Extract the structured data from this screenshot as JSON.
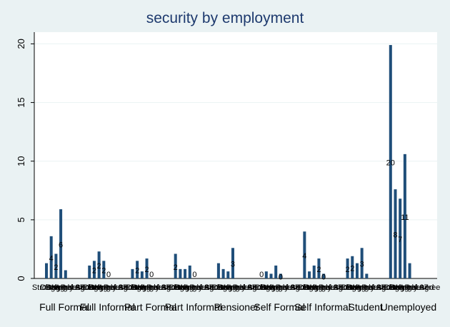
{
  "chart_data": {
    "type": "bar",
    "title": "security by employment",
    "xlabel": "",
    "ylabel": "",
    "ylim": [
      0,
      21
    ],
    "yticks": [
      0,
      5,
      10,
      15,
      20
    ],
    "grid": "horizontal",
    "legend": "none",
    "bar_color": "#1f4e79",
    "plot_background": "#ffffff",
    "frame_background": "#eaf2f3",
    "subcategory_labels": [
      "Strongly",
      "DK",
      "Disagree",
      "Neutral",
      "Agree",
      "Strongly Agree",
      "Refused",
      "97"
    ],
    "groups": [
      {
        "name": "Full Formal",
        "values": [
          1.3,
          3.6,
          2.1,
          5.9,
          0.7,
          0,
          0,
          0
        ],
        "labels": [
          "",
          "4",
          "2",
          "6",
          "",
          "",
          "",
          ""
        ]
      },
      {
        "name": "Full Informal",
        "values": [
          1.1,
          1.5,
          2.3,
          1.5,
          0,
          0,
          0,
          0
        ],
        "labels": [
          "",
          "2",
          "2",
          "2",
          "0",
          "",
          "",
          ""
        ]
      },
      {
        "name": "Part Formal",
        "values": [
          0.8,
          1.5,
          0.6,
          1.7,
          0,
          0,
          0,
          0
        ],
        "labels": [
          "",
          "2",
          "",
          "2",
          "0",
          "",
          "",
          ""
        ]
      },
      {
        "name": "Part Informal",
        "values": [
          2.1,
          0.8,
          0.8,
          1.1,
          0,
          0,
          0,
          0
        ],
        "labels": [
          "2",
          "",
          "",
          "",
          "0",
          "",
          "",
          ""
        ]
      },
      {
        "name": "Pensioner",
        "values": [
          1.3,
          0.8,
          0.6,
          2.6,
          0,
          0,
          0,
          0
        ],
        "labels": [
          "",
          "",
          "",
          "3",
          "",
          "",
          "",
          ""
        ]
      },
      {
        "name": "Self Formal",
        "values": [
          0,
          0.6,
          0.4,
          1.1,
          0.4,
          0,
          0,
          0
        ],
        "labels": [
          "0",
          "",
          "",
          "",
          "0",
          "",
          "",
          ""
        ]
      },
      {
        "name": "Self Informal",
        "values": [
          4.0,
          0.6,
          1.1,
          1.7,
          0.4,
          0,
          0,
          0
        ],
        "labels": [
          "4",
          "",
          "",
          "2",
          "0",
          "",
          "",
          ""
        ]
      },
      {
        "name": "Student",
        "values": [
          1.7,
          1.9,
          1.3,
          2.6,
          0.4,
          0,
          0,
          0
        ],
        "labels": [
          "2",
          "2",
          "",
          "3",
          "",
          "",
          "",
          ""
        ]
      },
      {
        "name": "Unemployed",
        "values": [
          19.9,
          7.6,
          6.8,
          10.6,
          1.3,
          0,
          0,
          0
        ],
        "labels": [
          "20",
          "8",
          "7",
          "11",
          "",
          "",
          "",
          ""
        ]
      }
    ]
  }
}
